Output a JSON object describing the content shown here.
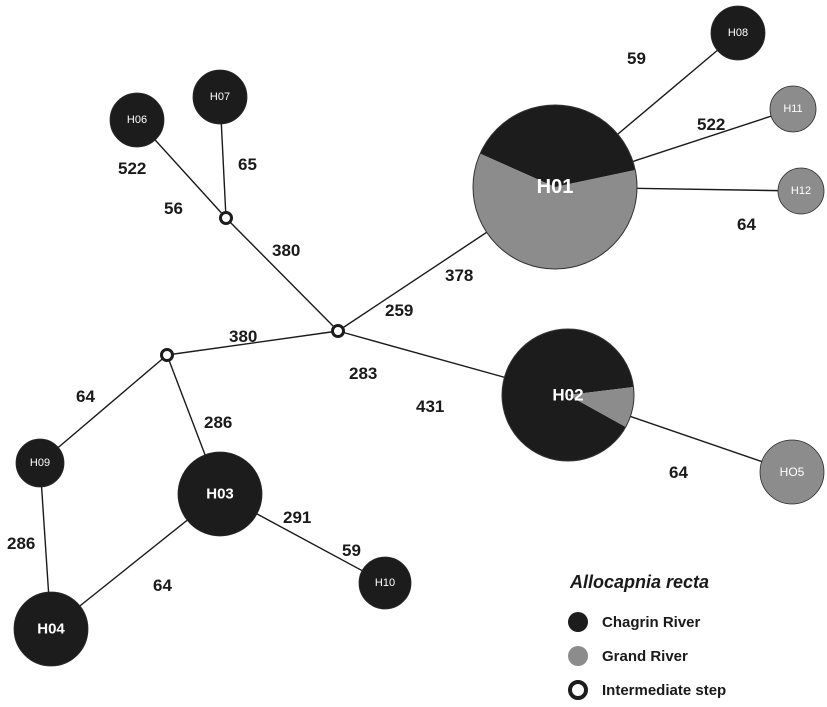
{
  "colors": {
    "chagrin": "#1c1c1c",
    "grand": "#8c8c8c",
    "edge": "#1a1a1a",
    "intermediate_fill": "#ffffff"
  },
  "nodes": [
    {
      "id": "H01",
      "label": "H01",
      "share_chagrin": 0.4,
      "share_grand": 0.6
    },
    {
      "id": "H02",
      "label": "H02",
      "share_chagrin": 0.9,
      "share_grand": 0.1
    },
    {
      "id": "H03",
      "label": "H03",
      "share_chagrin": 1.0,
      "share_grand": 0
    },
    {
      "id": "H04",
      "label": "H04",
      "share_chagrin": 1.0,
      "share_grand": 0
    },
    {
      "id": "H05",
      "label": "HO5",
      "share_chagrin": 0,
      "share_grand": 1.0
    },
    {
      "id": "H06",
      "label": "H06",
      "share_chagrin": 1.0,
      "share_grand": 0
    },
    {
      "id": "H07",
      "label": "H07",
      "share_chagrin": 1.0,
      "share_grand": 0
    },
    {
      "id": "H08",
      "label": "H08",
      "share_chagrin": 1.0,
      "share_grand": 0
    },
    {
      "id": "H09",
      "label": "H09",
      "share_chagrin": 1.0,
      "share_grand": 0
    },
    {
      "id": "H10",
      "label": "H10",
      "share_chagrin": 1.0,
      "share_grand": 0
    },
    {
      "id": "H11",
      "label": "H11",
      "share_chagrin": 0,
      "share_grand": 1.0
    },
    {
      "id": "H12",
      "label": "H12",
      "share_chagrin": 0,
      "share_grand": 1.0
    },
    {
      "id": "I1",
      "label": "",
      "intermediate": true
    },
    {
      "id": "I2",
      "label": "",
      "intermediate": true
    },
    {
      "id": "I3",
      "label": "",
      "intermediate": true
    }
  ],
  "edges": [
    {
      "from": "H06",
      "to": "I1",
      "labels": [
        "522",
        "56"
      ]
    },
    {
      "from": "H07",
      "to": "I1",
      "labels": [
        "65"
      ]
    },
    {
      "from": "I1",
      "to": "I2",
      "labels": [
        "380"
      ]
    },
    {
      "from": "I2",
      "to": "H01",
      "labels": [
        "259",
        "378"
      ]
    },
    {
      "from": "H01",
      "to": "H08",
      "labels": [
        "59"
      ]
    },
    {
      "from": "H01",
      "to": "H11",
      "labels": [
        "522"
      ]
    },
    {
      "from": "H01",
      "to": "H12",
      "labels": [
        "64"
      ]
    },
    {
      "from": "I2",
      "to": "H02",
      "labels": [
        "283",
        "431"
      ]
    },
    {
      "from": "H02",
      "to": "H05",
      "labels": [
        "64"
      ]
    },
    {
      "from": "I3",
      "to": "I2",
      "labels": [
        "380"
      ]
    },
    {
      "from": "I3",
      "to": "H09",
      "labels": [
        "64"
      ]
    },
    {
      "from": "I3",
      "to": "H03",
      "labels": [
        "286"
      ]
    },
    {
      "from": "H09",
      "to": "H04",
      "labels": [
        "286"
      ]
    },
    {
      "from": "H03",
      "to": "H04",
      "labels": [
        "64"
      ]
    },
    {
      "from": "H03",
      "to": "H10",
      "labels": [
        "291",
        "59"
      ]
    }
  ],
  "legend": {
    "title": "Allocapnia recta",
    "items": [
      {
        "label": "Chagrin River",
        "icon": "filled-black-circle"
      },
      {
        "label": "Grand River",
        "icon": "filled-gray-circle"
      },
      {
        "label": "Intermediate step",
        "icon": "hollow-circle"
      }
    ]
  }
}
